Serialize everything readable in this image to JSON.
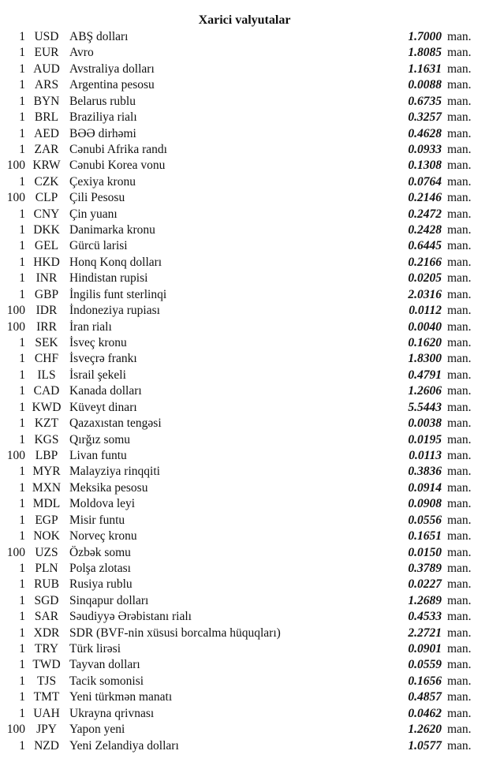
{
  "title": "Xarici valyutalar",
  "unit_label": "man.",
  "rates": [
    {
      "amount": "1",
      "code": "USD",
      "name": "ABŞ dolları",
      "value": "1.7000"
    },
    {
      "amount": "1",
      "code": "EUR",
      "name": "Avro",
      "value": "1.8085"
    },
    {
      "amount": "1",
      "code": "AUD",
      "name": "Avstraliya dolları",
      "value": "1.1631"
    },
    {
      "amount": "1",
      "code": "ARS",
      "name": "Argentina pesosu",
      "value": "0.0088"
    },
    {
      "amount": "1",
      "code": "BYN",
      "name": "Belarus rublu",
      "value": "0.6735"
    },
    {
      "amount": "1",
      "code": "BRL",
      "name": "Braziliya rialı",
      "value": "0.3257"
    },
    {
      "amount": "1",
      "code": "AED",
      "name": "BƏƏ dirhəmi",
      "value": "0.4628"
    },
    {
      "amount": "1",
      "code": "ZAR",
      "name": "Cənubi Afrika randı",
      "value": "0.0933"
    },
    {
      "amount": "100",
      "code": "KRW",
      "name": "Cənubi Korea vonu",
      "value": "0.1308"
    },
    {
      "amount": "1",
      "code": "CZK",
      "name": "Çexiya kronu",
      "value": "0.0764"
    },
    {
      "amount": "100",
      "code": "CLP",
      "name": "Çili Pesosu",
      "value": "0.2146"
    },
    {
      "amount": "1",
      "code": "CNY",
      "name": "Çin yuanı",
      "value": "0.2472"
    },
    {
      "amount": "1",
      "code": "DKK",
      "name": "Danimarka kronu",
      "value": "0.2428"
    },
    {
      "amount": "1",
      "code": "GEL",
      "name": "Gürcü larisi",
      "value": "0.6445"
    },
    {
      "amount": "1",
      "code": "HKD",
      "name": "Honq Konq dolları",
      "value": "0.2166"
    },
    {
      "amount": "1",
      "code": "INR",
      "name": "Hindistan rupisi",
      "value": "0.0205"
    },
    {
      "amount": "1",
      "code": "GBP",
      "name": "İngilis funt sterlinqi",
      "value": "2.0316"
    },
    {
      "amount": "100",
      "code": "IDR",
      "name": "İndoneziya rupiası",
      "value": "0.0112"
    },
    {
      "amount": "100",
      "code": "IRR",
      "name": "İran rialı",
      "value": "0.0040"
    },
    {
      "amount": "1",
      "code": "SEK",
      "name": "İsveç kronu",
      "value": "0.1620"
    },
    {
      "amount": "1",
      "code": "CHF",
      "name": "İsveçrə frankı",
      "value": "1.8300"
    },
    {
      "amount": "1",
      "code": "ILS",
      "name": "İsrail şekeli",
      "value": "0.4791"
    },
    {
      "amount": "1",
      "code": "CAD",
      "name": "Kanada dolları",
      "value": "1.2606"
    },
    {
      "amount": "1",
      "code": "KWD",
      "name": "Küveyt dinarı",
      "value": "5.5443"
    },
    {
      "amount": "1",
      "code": "KZT",
      "name": "Qazaxıstan tengəsi",
      "value": "0.0038"
    },
    {
      "amount": "1",
      "code": "KGS",
      "name": "Qırğız somu",
      "value": "0.0195"
    },
    {
      "amount": "100",
      "code": "LBP",
      "name": "Livan funtu",
      "value": "0.0113"
    },
    {
      "amount": "1",
      "code": "MYR",
      "name": "Malayziya rinqqiti",
      "value": "0.3836"
    },
    {
      "amount": "1",
      "code": "MXN",
      "name": "Meksika pesosu",
      "value": "0.0914"
    },
    {
      "amount": "1",
      "code": "MDL",
      "name": "Moldova leyi",
      "value": "0.0908"
    },
    {
      "amount": "1",
      "code": "EGP",
      "name": "Misir funtu",
      "value": "0.0556"
    },
    {
      "amount": "1",
      "code": "NOK",
      "name": "Norveç kronu",
      "value": "0.1651"
    },
    {
      "amount": "100",
      "code": "UZS",
      "name": "Özbək somu",
      "value": "0.0150"
    },
    {
      "amount": "1",
      "code": "PLN",
      "name": "Polşa zlotası",
      "value": "0.3789"
    },
    {
      "amount": "1",
      "code": "RUB",
      "name": "Rusiya rublu",
      "value": "0.0227"
    },
    {
      "amount": "1",
      "code": "SGD",
      "name": "Sinqapur dolları",
      "value": "1.2689"
    },
    {
      "amount": "1",
      "code": "SAR",
      "name": "Səudiyyə Ərəbistanı rialı",
      "value": "0.4533"
    },
    {
      "amount": "1",
      "code": "XDR",
      "name": "SDR (BVF-nin xüsusi borcalma hüquqları)",
      "value": "2.2721"
    },
    {
      "amount": "1",
      "code": "TRY",
      "name": "Türk lirəsi",
      "value": "0.0901"
    },
    {
      "amount": "1",
      "code": "TWD",
      "name": "Tayvan dolları",
      "value": "0.0559"
    },
    {
      "amount": "1",
      "code": "TJS",
      "name": "Tacik somonisi",
      "value": "0.1656"
    },
    {
      "amount": "1",
      "code": "TMT",
      "name": "Yeni türkmən manatı",
      "value": "0.4857"
    },
    {
      "amount": "1",
      "code": "UAH",
      "name": "Ukrayna qrivnası",
      "value": "0.0462"
    },
    {
      "amount": "100",
      "code": "JPY",
      "name": "Yapon yeni",
      "value": "1.2620"
    },
    {
      "amount": "1",
      "code": "NZD",
      "name": "Yeni Zelandiya dolları",
      "value": "1.0577"
    }
  ]
}
